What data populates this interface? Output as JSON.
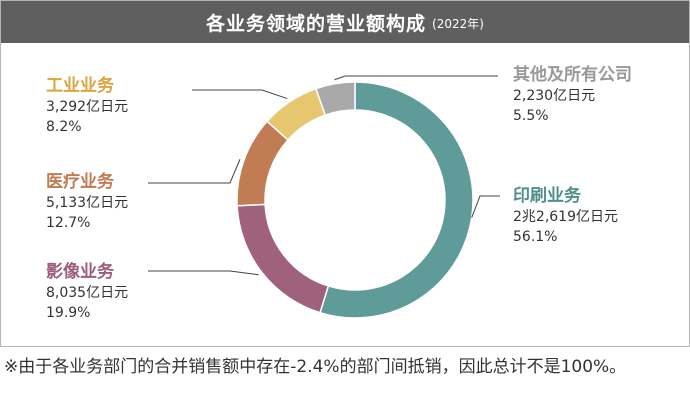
{
  "title": "各业务领域的营业额构成",
  "year": "(2022年)",
  "chart_data": {
    "type": "pie",
    "categories": [
      "印刷业务",
      "影像业务",
      "医疗业务",
      "工业业务",
      "其他及所有公司"
    ],
    "values": [
      56.1,
      19.9,
      12.7,
      8.2,
      5.5
    ],
    "amounts": [
      "2兆2,619亿日元",
      "8,035亿日元",
      "5,133亿日元",
      "3,292亿日元",
      "2,230亿日元"
    ],
    "percent_labels": [
      "56.1%",
      "19.9%",
      "12.7%",
      "8.2%",
      "5.5%"
    ],
    "colors": [
      "#5f9b98",
      "#a0617f",
      "#c27c53",
      "#e6c66e",
      "#a9a9a9"
    ],
    "name_colors": [
      "#4f8f8c",
      "#9a5d7e",
      "#c27c53",
      "#d9a53c",
      "#999999"
    ]
  },
  "note": "※由于各业务部门的合并销售额中存在-2.4%的部门间抵销，因此总计不是100%。"
}
